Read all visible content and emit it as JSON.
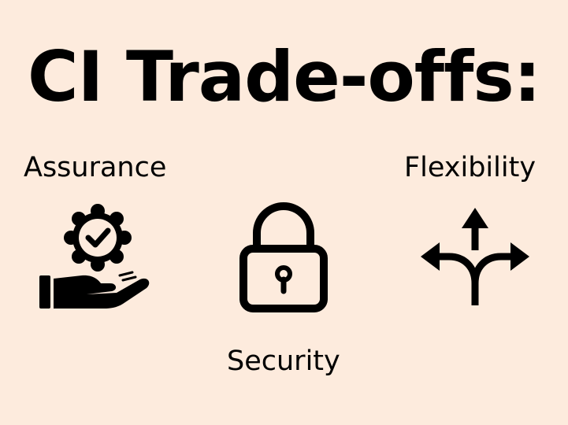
{
  "slide": {
    "title": "CI Trade-offs:",
    "labels": {
      "assurance": "Assurance",
      "flexibility": "Flexibility",
      "security": "Security"
    },
    "icons": {
      "assurance": "hand-badge-check-icon",
      "security": "padlock-icon",
      "flexibility": "branching-arrows-icon"
    },
    "colors": {
      "background": "#fdebdd",
      "foreground": "#000000"
    }
  }
}
